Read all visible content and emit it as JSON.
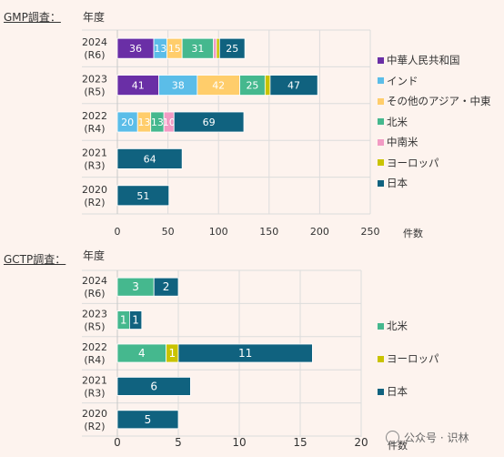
{
  "colors": {
    "中華人民共和国": "#6a2fa6",
    "インド": "#5bbde8",
    "その他のアジア・中東": "#ffcd6b",
    "北米": "#45b88e",
    "中南米": "#f29bc4",
    "ヨーロッパ": "#c9c300",
    "日本": "#10627f"
  },
  "watermark": {
    "text": "公众号 · 识林"
  },
  "chart_data": [
    {
      "type": "bar",
      "orientation": "horizontal",
      "stacked": true,
      "section_label": "GMP調査：",
      "year_header": "年度",
      "xlabel": "件数",
      "xlim": [
        0,
        250
      ],
      "xticks": [
        0,
        50,
        100,
        150,
        200,
        250
      ],
      "grid": true,
      "legend_position": "right",
      "categories": [
        {
          "year": "2024",
          "era": "(R6)"
        },
        {
          "year": "2023",
          "era": "(R5)"
        },
        {
          "year": "2022",
          "era": "(R4)"
        },
        {
          "year": "2021",
          "era": "(R3)"
        },
        {
          "year": "2020",
          "era": "(R2)"
        }
      ],
      "series": [
        {
          "name": "中華人民共和国",
          "values": [
            36,
            41,
            0,
            0,
            0
          ],
          "labels": [
            "36",
            "41",
            "",
            "",
            ""
          ]
        },
        {
          "name": "インド",
          "values": [
            13,
            38,
            20,
            0,
            0
          ],
          "labels": [
            "13",
            "38",
            "20",
            "",
            ""
          ]
        },
        {
          "name": "その他のアジア・中東",
          "values": [
            15,
            42,
            13,
            0,
            0
          ],
          "labels": [
            "15",
            "42",
            "13",
            "",
            ""
          ]
        },
        {
          "name": "北米",
          "values": [
            31,
            25,
            13,
            0,
            0
          ],
          "labels": [
            "31",
            "25",
            "13",
            "",
            ""
          ]
        },
        {
          "name": "中南米",
          "values": [
            3,
            0,
            10,
            0,
            0
          ],
          "labels": [
            "",
            "",
            "10",
            "",
            ""
          ]
        },
        {
          "name": "ヨーロッパ",
          "values": [
            3,
            5,
            0,
            0,
            0
          ],
          "labels": [
            "",
            "",
            "",
            "",
            ""
          ]
        },
        {
          "name": "日本",
          "values": [
            25,
            47,
            69,
            64,
            51
          ],
          "labels": [
            "25",
            "47",
            "69",
            "64",
            "51"
          ]
        }
      ]
    },
    {
      "type": "bar",
      "orientation": "horizontal",
      "stacked": true,
      "section_label": "GCTP調査：",
      "year_header": "年度",
      "xlabel": "件数",
      "xlim": [
        0,
        20
      ],
      "xticks": [
        0,
        5,
        10,
        15,
        20
      ],
      "grid": true,
      "legend_position": "right",
      "categories": [
        {
          "year": "2024",
          "era": "(R6)"
        },
        {
          "year": "2023",
          "era": "(R5)"
        },
        {
          "year": "2022",
          "era": "(R4)"
        },
        {
          "year": "2021",
          "era": "(R3)"
        },
        {
          "year": "2020",
          "era": "(R2)"
        }
      ],
      "series": [
        {
          "name": "北米",
          "values": [
            3,
            1,
            4,
            0,
            0
          ],
          "labels": [
            "3",
            "1",
            "4",
            "",
            ""
          ]
        },
        {
          "name": "ヨーロッパ",
          "values": [
            0,
            0,
            1,
            0,
            0
          ],
          "labels": [
            "",
            "",
            "1",
            "",
            ""
          ]
        },
        {
          "name": "日本",
          "values": [
            2,
            1,
            11,
            6,
            5
          ],
          "labels": [
            "2",
            "1",
            "11",
            "6",
            "5"
          ]
        }
      ]
    }
  ]
}
